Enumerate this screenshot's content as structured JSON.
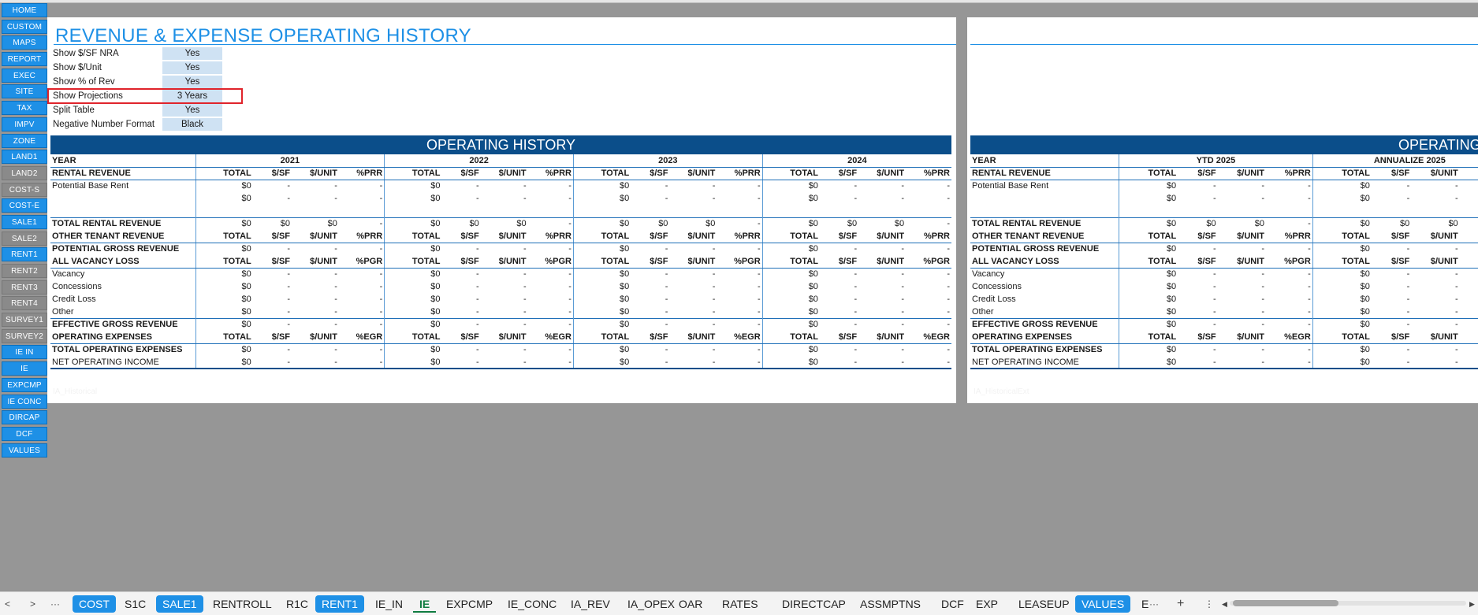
{
  "nav": [
    "HOME",
    "CUSTOM",
    "MAPS",
    "REPORT",
    "EXEC",
    "SITE",
    "TAX",
    "IMPV",
    "ZONE",
    "LAND1",
    "LAND2",
    "COST-S",
    "COST-E",
    "SALE1",
    "SALE2",
    "RENT1",
    "RENT2",
    "RENT3",
    "RENT4",
    "SURVEY1",
    "SURVEY2",
    "IE IN",
    "IE",
    "EXPCMP",
    "IE CONC",
    "DIRCAP",
    "DCF",
    "VALUES"
  ],
  "nav_gray": [
    "LAND2",
    "COST-S",
    "SALE2",
    "RENT2",
    "RENT3",
    "RENT4",
    "SURVEY1",
    "SURVEY2"
  ],
  "sheet1": {
    "title": "REVENUE & EXPENSE OPERATING HISTORY",
    "settings": [
      {
        "label": "Show $/SF NRA",
        "value": "Yes"
      },
      {
        "label": "Show $/Unit",
        "value": "Yes"
      },
      {
        "label": "Show % of Rev",
        "value": "Yes"
      },
      {
        "label": "Show Projections",
        "value": "3 Years"
      },
      {
        "label": "Split Table",
        "value": "Yes"
      },
      {
        "label": "Negative Number Format",
        "value": "Black"
      }
    ],
    "band": "OPERATING HISTORY",
    "sheet_name": "IA_Historical",
    "year_label": "YEAR",
    "years": [
      "2021",
      "2022",
      "2023",
      "2024"
    ]
  },
  "sheet2": {
    "band": "OPERATING",
    "sheet_name": "IA_HistoricalExt",
    "year_label": "YEAR",
    "years": [
      "YTD 2025",
      "ANNUALIZE 2025"
    ]
  },
  "rows": [
    {
      "type": "hdr",
      "label": "RENTAL REVENUE",
      "cols": [
        "TOTAL",
        "$/SF",
        "$/UNIT",
        "%PRR"
      ]
    },
    {
      "type": "item",
      "label": "Potential Base Rent",
      "cols": [
        "$0",
        "-",
        "-",
        "-"
      ]
    },
    {
      "type": "item",
      "label": "",
      "cols": [
        "$0",
        "-",
        "-",
        "-"
      ]
    },
    {
      "type": "blank",
      "label": "",
      "cols": [
        "",
        "",
        "",
        ""
      ]
    },
    {
      "type": "tot",
      "label": "TOTAL RENTAL REVENUE",
      "cols": [
        "$0",
        "$0",
        "$0",
        "-"
      ]
    },
    {
      "type": "hdr",
      "label": "OTHER TENANT REVENUE",
      "cols": [
        "TOTAL",
        "$/SF",
        "$/UNIT",
        "%PRR"
      ]
    },
    {
      "type": "tot",
      "label": "POTENTIAL GROSS REVENUE",
      "cols": [
        "$0",
        "-",
        "-",
        "-"
      ]
    },
    {
      "type": "hdr",
      "label": "ALL VACANCY LOSS",
      "cols": [
        "TOTAL",
        "$/SF",
        "$/UNIT",
        "%PGR"
      ]
    },
    {
      "type": "item",
      "label": "Vacancy",
      "cols": [
        "$0",
        "-",
        "-",
        "-"
      ]
    },
    {
      "type": "item",
      "label": "Concessions",
      "cols": [
        "$0",
        "-",
        "-",
        "-"
      ]
    },
    {
      "type": "item",
      "label": "Credit Loss",
      "cols": [
        "$0",
        "-",
        "-",
        "-"
      ]
    },
    {
      "type": "item",
      "label": "Other",
      "cols": [
        "$0",
        "-",
        "-",
        "-"
      ]
    },
    {
      "type": "tot",
      "label": "EFFECTIVE GROSS REVENUE",
      "cols": [
        "$0",
        "-",
        "-",
        "-"
      ]
    },
    {
      "type": "hdr",
      "label": "OPERATING EXPENSES",
      "cols": [
        "TOTAL",
        "$/SF",
        "$/UNIT",
        "%EGR"
      ]
    },
    {
      "type": "tot",
      "label": "TOTAL OPERATING EXPENSES",
      "cols": [
        "$0",
        "-",
        "-",
        "-"
      ]
    },
    {
      "type": "net",
      "label": "NET OPERATING INCOME",
      "cols": [
        "$0",
        "-",
        "-",
        "-"
      ]
    }
  ],
  "tabs": [
    {
      "label": "COST",
      "hl": true
    },
    {
      "label": "S1C"
    },
    {
      "label": "SALE1",
      "hl": true
    },
    {
      "label": "RENTROLL"
    },
    {
      "label": "R1C"
    },
    {
      "label": "RENT1",
      "hl": true
    },
    {
      "label": "IE_IN"
    },
    {
      "label": "IE",
      "active": true
    },
    {
      "label": "EXPCMP"
    },
    {
      "label": "IE_CONC"
    },
    {
      "label": "IA_REV"
    },
    {
      "label": "IA_OPEX"
    },
    {
      "label": "OAR"
    },
    {
      "label": "RATES"
    },
    {
      "label": "DIRECTCAP"
    },
    {
      "label": "ASSMPTNS"
    },
    {
      "label": "DCF"
    },
    {
      "label": "EXP"
    },
    {
      "label": "LEASEUP"
    },
    {
      "label": "VALUES",
      "hl": true
    },
    {
      "label": "E"
    }
  ],
  "tabbar_controls": {
    "prev": "<",
    "next": ">",
    "more_left": "···",
    "more_right": "···",
    "add": "+",
    "options": "⋮",
    "scroll_left": "◀",
    "scroll_right": "▶"
  }
}
